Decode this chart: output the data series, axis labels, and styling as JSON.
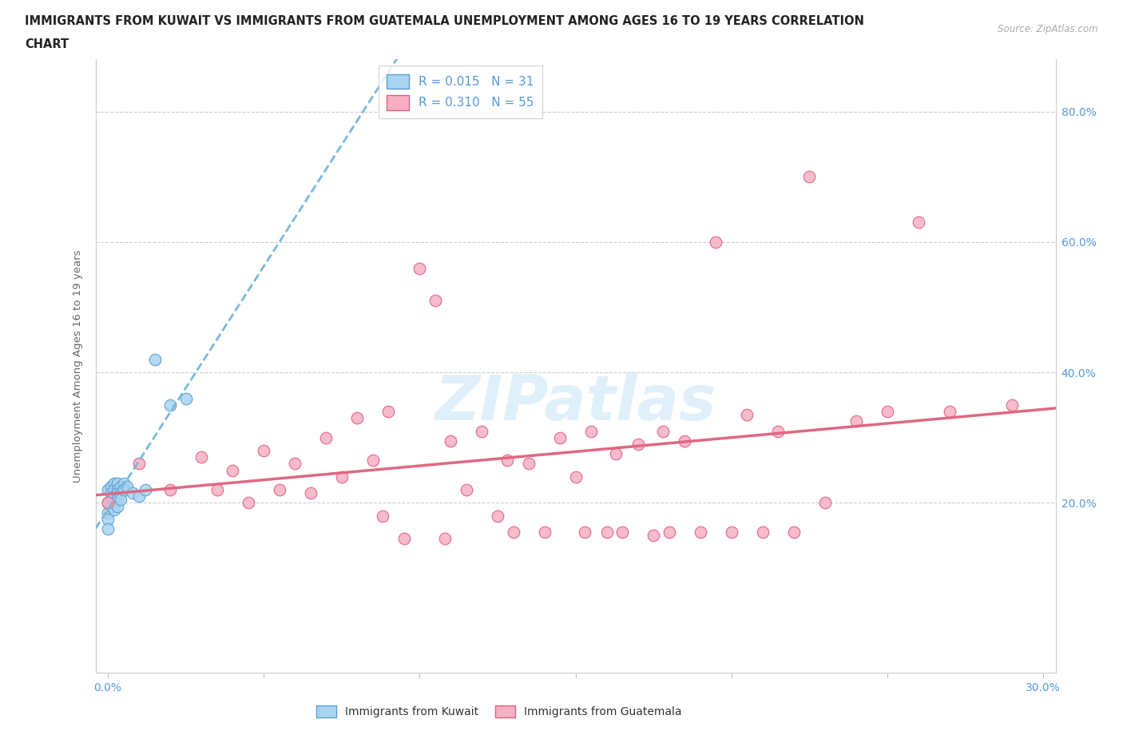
{
  "title_line1": "IMMIGRANTS FROM KUWAIT VS IMMIGRANTS FROM GUATEMALA UNEMPLOYMENT AMONG AGES 16 TO 19 YEARS CORRELATION",
  "title_line2": "CHART",
  "source": "Source: ZipAtlas.com",
  "ylabel": "Unemployment Among Ages 16 to 19 years",
  "kuwait_R": 0.015,
  "kuwait_N": 31,
  "guatemala_R": 0.31,
  "guatemala_N": 55,
  "kuwait_color": "#A8D4F0",
  "guatemala_color": "#F5B0C5",
  "kuwait_edge_color": "#5A9FD4",
  "guatemala_edge_color": "#E06080",
  "kuwait_line_color": "#7AB8E0",
  "guatemala_line_color": "#E06880",
  "axis_label_color": "#5599DD",
  "grid_color": "#CCCCCC",
  "kuwait_x": [
    0.0,
    0.0,
    0.0,
    0.0,
    0.0,
    0.001,
    0.001,
    0.001,
    0.001,
    0.002,
    0.002,
    0.002,
    0.002,
    0.002,
    0.003,
    0.003,
    0.003,
    0.003,
    0.003,
    0.004,
    0.004,
    0.004,
    0.005,
    0.005,
    0.006,
    0.008,
    0.01,
    0.012,
    0.015,
    0.02,
    0.025
  ],
  "kuwait_y": [
    0.22,
    0.2,
    0.185,
    0.175,
    0.16,
    0.225,
    0.215,
    0.205,
    0.195,
    0.23,
    0.22,
    0.21,
    0.2,
    0.19,
    0.23,
    0.22,
    0.215,
    0.205,
    0.195,
    0.225,
    0.215,
    0.205,
    0.23,
    0.22,
    0.225,
    0.215,
    0.21,
    0.22,
    0.42,
    0.35,
    0.36
  ],
  "guatemala_x": [
    0.0,
    0.01,
    0.02,
    0.03,
    0.035,
    0.04,
    0.045,
    0.05,
    0.055,
    0.06,
    0.065,
    0.07,
    0.075,
    0.08,
    0.085,
    0.088,
    0.09,
    0.095,
    0.1,
    0.105,
    0.108,
    0.11,
    0.115,
    0.12,
    0.125,
    0.128,
    0.13,
    0.135,
    0.14,
    0.145,
    0.15,
    0.153,
    0.155,
    0.16,
    0.163,
    0.165,
    0.17,
    0.175,
    0.178,
    0.18,
    0.185,
    0.19,
    0.195,
    0.2,
    0.205,
    0.21,
    0.215,
    0.22,
    0.225,
    0.23,
    0.24,
    0.25,
    0.26,
    0.27,
    0.29
  ],
  "guatemala_y": [
    0.2,
    0.26,
    0.22,
    0.27,
    0.22,
    0.25,
    0.2,
    0.28,
    0.22,
    0.26,
    0.215,
    0.3,
    0.24,
    0.33,
    0.265,
    0.18,
    0.34,
    0.145,
    0.56,
    0.51,
    0.145,
    0.295,
    0.22,
    0.31,
    0.18,
    0.265,
    0.155,
    0.26,
    0.155,
    0.3,
    0.24,
    0.155,
    0.31,
    0.155,
    0.275,
    0.155,
    0.29,
    0.15,
    0.31,
    0.155,
    0.295,
    0.155,
    0.6,
    0.155,
    0.335,
    0.155,
    0.31,
    0.155,
    0.7,
    0.2,
    0.325,
    0.34,
    0.63,
    0.34,
    0.35
  ],
  "xlim_min": -0.004,
  "xlim_max": 0.304,
  "ylim_min": -0.06,
  "ylim_max": 0.88,
  "ytick_positions": [
    0.0,
    0.2,
    0.4,
    0.6,
    0.8
  ],
  "xtick_positions": [
    0.0,
    0.05,
    0.1,
    0.15,
    0.2,
    0.25,
    0.3
  ]
}
